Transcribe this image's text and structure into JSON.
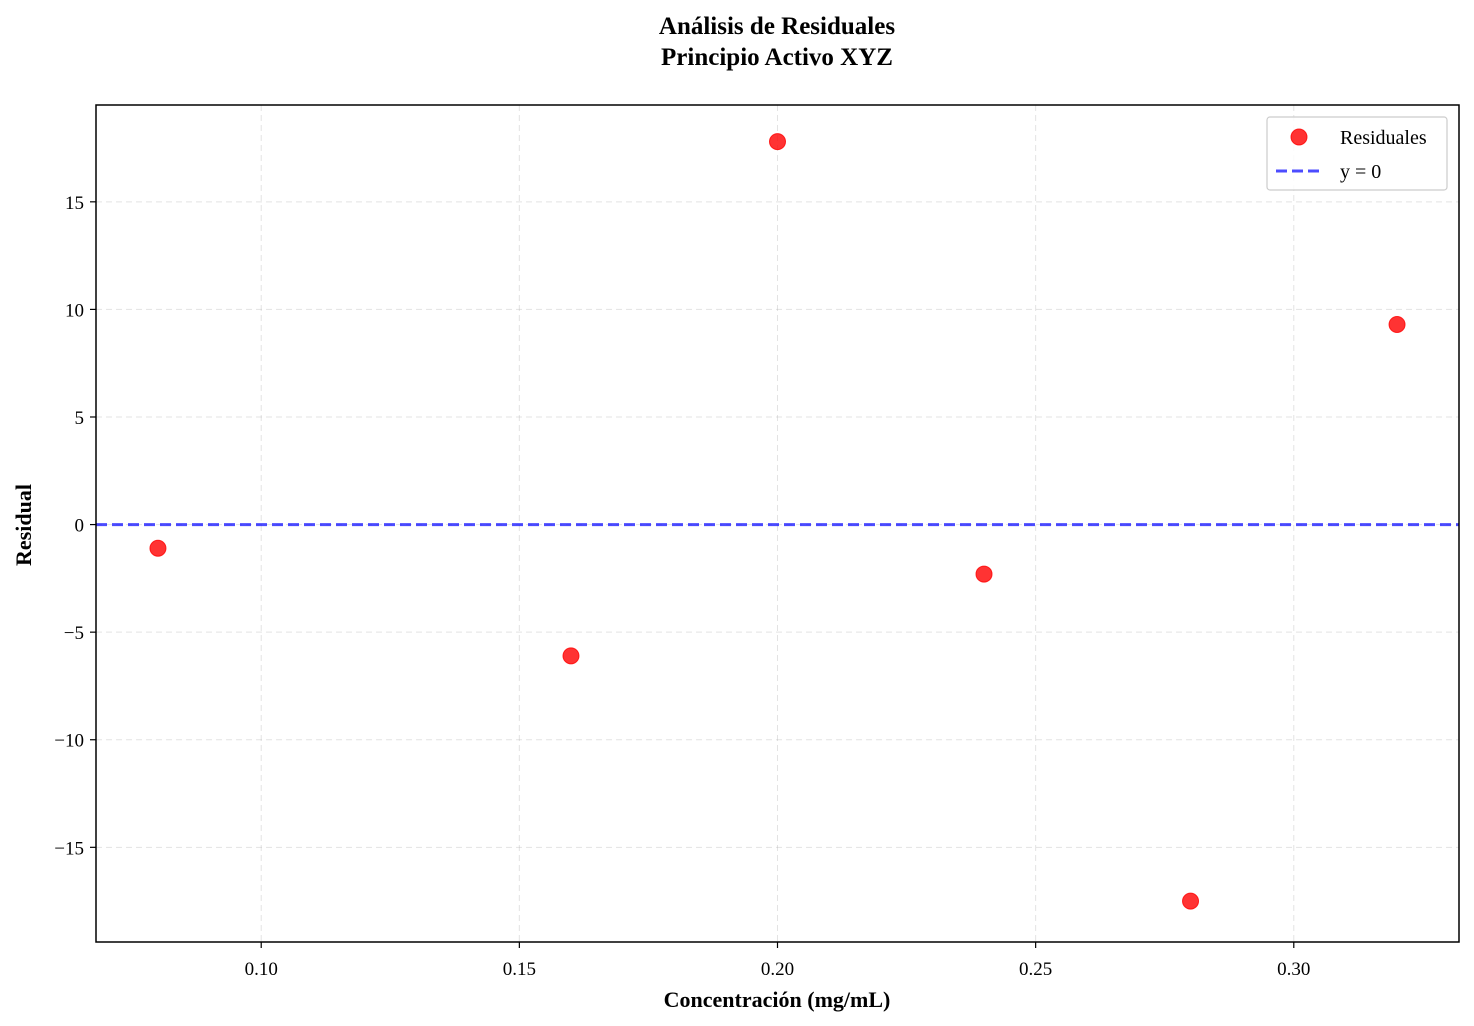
{
  "chart_data": {
    "type": "scatter",
    "title": [
      "Análisis de Residuales",
      "Principio Activo XYZ"
    ],
    "xlabel": "Concentración (mg/mL)",
    "ylabel": "Residual",
    "xlim": [
      0.068,
      0.332
    ],
    "ylim": [
      -19.4,
      19.5
    ],
    "xticks": [
      0.1,
      0.15,
      0.2,
      0.25,
      0.3
    ],
    "xtick_labels": [
      "0.10",
      "0.15",
      "0.20",
      "0.25",
      "0.30"
    ],
    "yticks": [
      15,
      10,
      5,
      0,
      -5,
      -10,
      -15
    ],
    "ytick_labels": [
      "15",
      "10",
      "5",
      "0",
      "−5",
      "−10",
      "−15"
    ],
    "grid": true,
    "legend_position": "top-right",
    "series": [
      {
        "name": "Residuales",
        "kind": "scatter",
        "color": "#ff0000",
        "x": [
          0.08,
          0.16,
          0.2,
          0.24,
          0.28,
          0.32
        ],
        "y": [
          -1.1,
          -6.1,
          17.8,
          -2.3,
          -17.5,
          9.3
        ]
      },
      {
        "name": "y = 0",
        "kind": "hline",
        "color": "#0000ff",
        "style": "dashed",
        "y": 0
      }
    ]
  }
}
